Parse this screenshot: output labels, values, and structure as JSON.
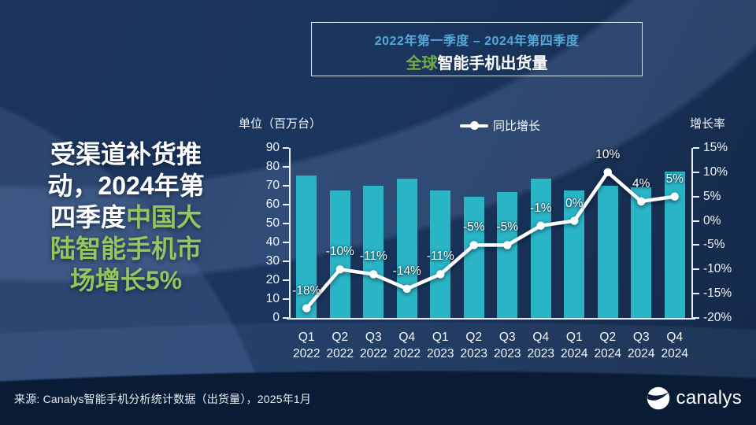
{
  "title_box": {
    "line1": "2022年第一季度 – 2024年第四季度",
    "line2_highlight": "全球",
    "line2_rest": "智能手机出货量"
  },
  "headline": {
    "accent_color": "#95c55e",
    "full_text": "受渠道补货推动，2024年第四季度中国大陆智能手机市场增长5%",
    "lines": [
      {
        "segments": [
          {
            "text": "受渠道补货推",
            "color": "white"
          }
        ]
      },
      {
        "segments": [
          {
            "text": "动，2024年第",
            "color": "white"
          }
        ]
      },
      {
        "segments": [
          {
            "text": "四季度",
            "color": "white"
          },
          {
            "text": "中国大",
            "color": "accent"
          }
        ]
      },
      {
        "segments": [
          {
            "text": "陆智能手机市",
            "color": "accent"
          }
        ]
      },
      {
        "segments": [
          {
            "text": "场增长5%",
            "color": "accent"
          }
        ]
      }
    ]
  },
  "chart_data": {
    "type": "bar",
    "subtype": "combo-bar-line",
    "title": "全球智能手机出货量",
    "period": "2022年第一季度 – 2024年第四季度",
    "categories": [
      "Q1 2022",
      "Q2 2022",
      "Q3 2022",
      "Q4 2022",
      "Q1 2023",
      "Q2 2023",
      "Q3 2023",
      "Q4 2023",
      "Q1 2024",
      "Q2 2024",
      "Q3 2024",
      "Q4 2024"
    ],
    "bar_series": {
      "name": "出货量（百万台）",
      "values": [
        75.6,
        67.4,
        70.0,
        73.9,
        67.6,
        64.3,
        66.7,
        73.9,
        67.7,
        70.0,
        69.1,
        77.4
      ],
      "color": "#2ab5c6"
    },
    "line_series": {
      "name": "同比增长",
      "values_pct": [
        -18,
        -10,
        -11,
        -14,
        -11,
        -5,
        -5,
        -1,
        0,
        10,
        4,
        5
      ],
      "labels": [
        "-18%",
        "-10%",
        "-11%",
        "-14%",
        "-11%",
        "-5%",
        "-5%",
        "-1%",
        "0%",
        "10%",
        "4%",
        "5%"
      ],
      "color": "#ffffff"
    },
    "left_axis": {
      "title": "单位（百万台）",
      "min": 0,
      "max": 90,
      "step": 10
    },
    "right_axis": {
      "title": "增长率",
      "min": -20,
      "max": 15,
      "step": 5,
      "label_suffix": "%"
    },
    "legend": {
      "label": "同比增长",
      "position": "top-center",
      "marker": "line-dot"
    },
    "grid": false
  },
  "source": "来源: Canalys智能手机分析统计数据（出货量），2025年1月",
  "logo": {
    "text": "canalys"
  }
}
